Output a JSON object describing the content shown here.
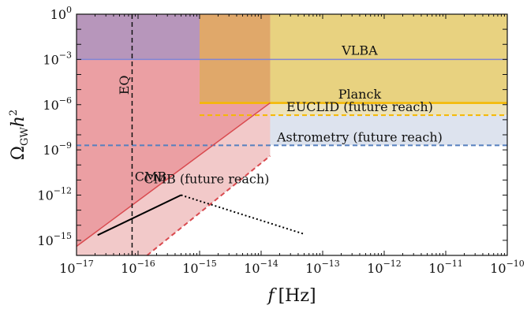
{
  "chart_data": {
    "type": "line",
    "xlabel": "f [Hz]",
    "ylabel": "Ω_GW h²",
    "xscale": "log",
    "yscale": "log",
    "xlim": [
      1e-17,
      1e-10
    ],
    "ylim": [
      1e-16,
      1
    ],
    "grid": false,
    "legend": "none",
    "x_ticks": [
      {
        "base": "10",
        "exp": "−17",
        "value": 1e-17
      },
      {
        "base": "10",
        "exp": "−16",
        "value": 1e-16
      },
      {
        "base": "10",
        "exp": "−15",
        "value": 1e-15
      },
      {
        "base": "10",
        "exp": "−14",
        "value": 1e-14
      },
      {
        "base": "10",
        "exp": "−13",
        "value": 1e-13
      },
      {
        "base": "10",
        "exp": "−12",
        "value": 1e-12
      },
      {
        "base": "10",
        "exp": "−11",
        "value": 1e-11
      },
      {
        "base": "10",
        "exp": "−10",
        "value": 1e-10
      }
    ],
    "y_ticks": [
      {
        "base": "10",
        "exp": "0",
        "value": 1
      },
      {
        "base": "10",
        "exp": "−3",
        "value": 0.001
      },
      {
        "base": "10",
        "exp": "−6",
        "value": 1e-06
      },
      {
        "base": "10",
        "exp": "−9",
        "value": 1e-09
      },
      {
        "base": "10",
        "exp": "−12",
        "value": 1e-12
      },
      {
        "base": "10",
        "exp": "−15",
        "value": 1e-15
      }
    ],
    "regions": [
      {
        "id": "vlba",
        "f_min": 1e-17,
        "f_max": 1e-10,
        "omega_min": 0.001,
        "omega_max": 1,
        "color": "#b59bc9"
      },
      {
        "id": "planck",
        "f_min": 1e-15,
        "f_max": 1e-10,
        "omega_min": 1.3e-06,
        "omega_max": 1,
        "color": "#e8d280"
      },
      {
        "id": "euclid",
        "f_min": 1e-15,
        "f_max": 1e-10,
        "omega_min": 2e-07,
        "omega_max": 1.3e-06,
        "color": "#ede3bb"
      },
      {
        "id": "astrometry",
        "f_min": 1e-17,
        "f_max": 1e-10,
        "omega_min": 2e-09,
        "omega_max": 2e-07,
        "color": "#dde3ee"
      },
      {
        "id": "cmb_future",
        "boundary_f": [
          1e-17,
          1.4e-14,
          1.4e-14,
          1.4e-16,
          1e-17
        ],
        "boundary_omega": [
          1,
          1,
          4e-10,
          1e-16,
          1e-16
        ],
        "color": "#f2c9c9"
      },
      {
        "id": "cmb",
        "boundary_f": [
          1e-17,
          1.4e-14,
          1.4e-14,
          1e-17
        ],
        "boundary_omega": [
          1,
          1,
          1.3e-06,
          4e-16
        ],
        "color": "#eb9fa3"
      },
      {
        "id": "orange_overlap",
        "f_min": 1e-15,
        "f_max": 1.4e-14,
        "omega_min": 1.3e-06,
        "omega_max": 1,
        "color": "#e0a86a"
      },
      {
        "id": "purple_overlap",
        "f_min": 1e-17,
        "f_max": 1e-15,
        "omega_min": 0.001,
        "omega_max": 1,
        "color": "#b796bb"
      }
    ],
    "series": [
      {
        "id": "vlba_line",
        "x": [
          1e-17,
          1e-10
        ],
        "y": [
          0.001,
          0.001
        ],
        "color": "#7f85d6",
        "dash": "solid",
        "width": 1.5
      },
      {
        "id": "planck_line",
        "x": [
          1e-15,
          1e-10
        ],
        "y": [
          1.3e-06,
          1.3e-06
        ],
        "color": "#f5b800",
        "dash": "solid",
        "width": 2.5
      },
      {
        "id": "euclid_line",
        "x": [
          1e-15,
          1e-10
        ],
        "y": [
          2e-07,
          2e-07
        ],
        "color": "#f5b800",
        "dash": "dashed",
        "width": 2
      },
      {
        "id": "astrometry_line",
        "x": [
          1e-17,
          1e-10
        ],
        "y": [
          2e-09,
          2e-09
        ],
        "color": "#5580bf",
        "dash": "dashed",
        "width": 2
      },
      {
        "id": "cmb_line",
        "x": [
          1e-17,
          1.4e-14
        ],
        "y": [
          4e-16,
          1.3e-06
        ],
        "color": "#d94a4f",
        "dash": "solid",
        "width": 1.5
      },
      {
        "id": "cmb_future_line",
        "x": [
          1.4e-16,
          1.4e-14
        ],
        "y": [
          1e-16,
          4e-10
        ],
        "color": "#d94a4f",
        "dash": "dashed",
        "width": 2
      },
      {
        "id": "eq_line",
        "x": [
          8e-17,
          8e-17
        ],
        "y": [
          1e-16,
          1
        ],
        "color": "#111111",
        "dash": "dashed",
        "width": 1.5
      },
      {
        "id": "signal_solid",
        "x": [
          2.2e-17,
          5e-16
        ],
        "y": [
          2.2e-15,
          1e-12
        ],
        "color": "#000000",
        "dash": "solid",
        "width": 2
      },
      {
        "id": "signal_dotted",
        "x": [
          5e-16,
          5e-14
        ],
        "y": [
          1e-12,
          2.6e-15
        ],
        "color": "#000000",
        "dash": "dotted",
        "width": 2
      }
    ],
    "annotations": [
      {
        "text": "VLBA",
        "x": 4e-13,
        "y": 0.002,
        "rotate": 0
      },
      {
        "text": "Planck",
        "x": 4e-13,
        "y": 2.6e-06,
        "rotate": 0
      },
      {
        "text": "EUCLID (future reach)",
        "x": 4e-13,
        "y": 3.6e-07,
        "rotate": 0
      },
      {
        "text": "Astrometry (future reach)",
        "x": 4e-13,
        "y": 3.6e-09,
        "rotate": 0
      },
      {
        "text": "CMB",
        "x": 1.6e-16,
        "y": 9e-12,
        "rotate": 0
      },
      {
        "text": "CMB (future reach)",
        "x": 1.3e-15,
        "y": 6e-12,
        "rotate": 0
      },
      {
        "text": "EQ",
        "x": 7e-17,
        "y": 2e-05,
        "rotate": -90
      }
    ]
  }
}
